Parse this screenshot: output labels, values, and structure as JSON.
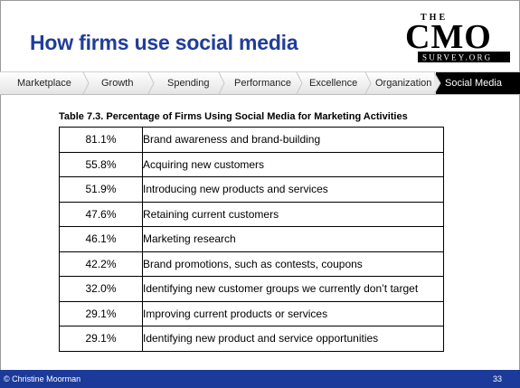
{
  "slide": {
    "title": "How firms use social media",
    "logo": {
      "top": "THE",
      "main": "CMO",
      "bottom": "SURVEY.ORG"
    },
    "nav": {
      "items": [
        "Marketplace",
        "Growth",
        "Spending",
        "Performance",
        "Excellence",
        "Organization",
        "Social Media"
      ],
      "active": "Social Media"
    },
    "table": {
      "caption": "Table 7.3. Percentage of Firms Using Social Media for Marketing Activities",
      "rows": [
        {
          "percent": "81.1%",
          "activity": "Brand awareness and brand-building"
        },
        {
          "percent": "55.8%",
          "activity": "Acquiring new customers"
        },
        {
          "percent": "51.9%",
          "activity": "Introducing new products and services"
        },
        {
          "percent": "47.6%",
          "activity": "Retaining current customers"
        },
        {
          "percent": "46.1%",
          "activity": "Marketing research"
        },
        {
          "percent": "42.2%",
          "activity": "Brand promotions, such as contests, coupons"
        },
        {
          "percent": "32.0%",
          "activity": "Identifying new customer groups we currently don’t target"
        },
        {
          "percent": "29.1%",
          "activity": "Improving current products or services"
        },
        {
          "percent": "29.1%",
          "activity": "Identifying new product and service opportunities"
        }
      ]
    },
    "footer": {
      "copyright": "© Christine Moorman",
      "page_number": "33"
    },
    "colors": {
      "title": "#1f3d99",
      "footer_bar": "#1c3a9a",
      "active_tab": "#000000"
    }
  }
}
